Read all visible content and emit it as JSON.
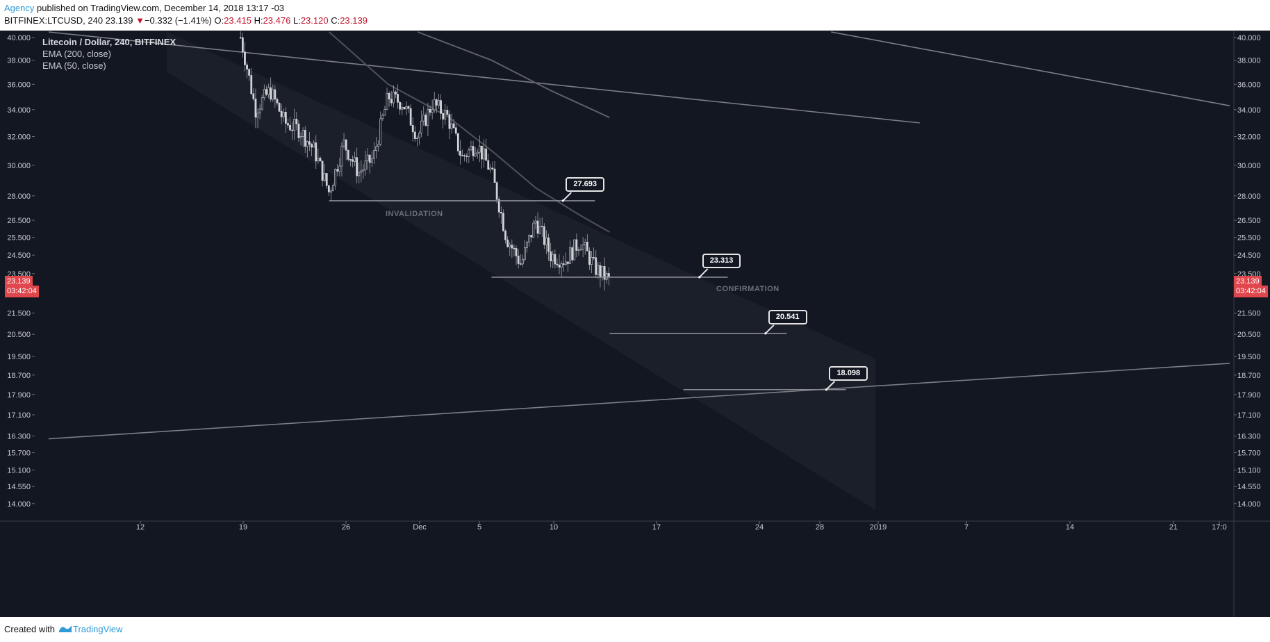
{
  "header": {
    "author": "Agency",
    "published_text": " published on TradingView.com, December 14, 2018 13:17 -03",
    "symbol": "BITFINEX:LTCUSD, 240",
    "last_price": "23.139",
    "change_arrow": "▼",
    "change": "−0.332 (−1.41%)",
    "open_label": "O:",
    "open": "23.415",
    "high_label": "H:",
    "high": "23.476",
    "low_label": "L:",
    "low": "23.120",
    "close_label": "C:",
    "close": "23.139"
  },
  "legend": {
    "title": "Litecoin / Dollar, 240, BITFINEX",
    "indicators": [
      "EMA (200, close)",
      "EMA (50, close)"
    ]
  },
  "price_badges": {
    "price": "23.139",
    "countdown": "03:42:04"
  },
  "annotations": {
    "invalidation": "INVALIDATION",
    "confirmation": "CONFIRMATION"
  },
  "chart_data": {
    "type": "candlestick",
    "title": "Litecoin / Dollar, 240, BITFINEX",
    "timeframe": "240",
    "y_scale": "log",
    "ylim": [
      13.8,
      40.5
    ],
    "y_ticks": [
      "40.000",
      "38.000",
      "36.000",
      "34.000",
      "32.000",
      "30.000",
      "28.000",
      "26.500",
      "25.500",
      "24.500",
      "23.500",
      "21.500",
      "20.500",
      "19.500",
      "18.700",
      "17.900",
      "17.100",
      "16.300",
      "15.700",
      "15.100",
      "14.550",
      "14.000"
    ],
    "x_ticks": [
      "12",
      "19",
      "26",
      "Dec",
      "5",
      "10",
      "17",
      "24",
      "28",
      "2019",
      "7",
      "14",
      "21",
      "17:0"
    ],
    "x_range": [
      "2018-11-06",
      "2019-01-25"
    ],
    "price_path": [
      [
        "2018-11-19",
        40.0
      ],
      [
        "2018-11-19T12",
        37.0
      ],
      [
        "2018-11-20",
        34.0
      ],
      [
        "2018-11-21",
        35.5
      ],
      [
        "2018-11-22",
        33.0
      ],
      [
        "2018-11-23",
        32.5
      ],
      [
        "2018-11-24",
        31.0
      ],
      [
        "2018-11-25",
        28.2
      ],
      [
        "2018-11-26",
        31.5
      ],
      [
        "2018-11-27",
        29.5
      ],
      [
        "2018-11-28",
        30.5
      ],
      [
        "2018-11-29",
        35.0
      ],
      [
        "2018-11-30",
        34.5
      ],
      [
        "2018-12-01",
        32.0
      ],
      [
        "2018-12-02",
        34.5
      ],
      [
        "2018-12-03",
        33.5
      ],
      [
        "2018-12-04",
        30.5
      ],
      [
        "2018-12-05",
        31.5
      ],
      [
        "2018-12-06",
        29.5
      ],
      [
        "2018-12-06T12",
        27.5
      ],
      [
        "2018-12-07",
        25.5
      ],
      [
        "2018-12-08",
        24.0
      ],
      [
        "2018-12-09",
        26.5
      ],
      [
        "2018-12-10",
        24.5
      ],
      [
        "2018-12-11",
        24.2
      ],
      [
        "2018-12-12",
        25.3
      ],
      [
        "2018-12-13",
        23.8
      ],
      [
        "2018-12-14",
        23.139
      ]
    ],
    "ema_50": [
      [
        "2018-11-25",
        40.5
      ],
      [
        "2018-11-29",
        36.0
      ],
      [
        "2018-12-03",
        33.5
      ],
      [
        "2018-12-06",
        31.0
      ],
      [
        "2018-12-09",
        28.5
      ],
      [
        "2018-12-12",
        26.8
      ],
      [
        "2018-12-14",
        25.8
      ]
    ],
    "ema_200": [
      [
        "2018-12-01",
        40.5
      ],
      [
        "2018-12-06",
        38.0
      ],
      [
        "2018-12-10",
        35.5
      ],
      [
        "2018-12-14",
        33.4
      ]
    ],
    "horizontal_levels": [
      {
        "label": "27.693",
        "price": 27.693,
        "from": "2018-11-25",
        "to": "2018-12-13",
        "note": "INVALIDATION"
      },
      {
        "label": "23.313",
        "price": 23.313,
        "from": "2018-12-06",
        "to": "2018-12-22",
        "note": "CONFIRMATION"
      },
      {
        "label": "20.541",
        "price": 20.541,
        "from": "2018-12-14",
        "to": "2018-12-26",
        "note": ""
      },
      {
        "label": "18.098",
        "price": 18.098,
        "from": "2018-12-19",
        "to": "2018-12-30",
        "note": ""
      }
    ],
    "trend_lines": [
      {
        "name": "long-term resistance",
        "points": [
          [
            "2018-11-06",
            40.5
          ],
          [
            "2019-01-04",
            33.0
          ]
        ]
      },
      {
        "name": "upper resistance",
        "points": [
          [
            "2018-12-29",
            40.5
          ],
          [
            "2019-01-25",
            34.3
          ]
        ]
      },
      {
        "name": "long-term support",
        "points": [
          [
            "2018-11-06",
            16.2
          ],
          [
            "2019-01-25",
            19.2
          ]
        ]
      }
    ],
    "channel": {
      "upper": [
        [
          "2018-11-14",
          40.5
        ],
        [
          "2019-01-01",
          19.4
        ]
      ],
      "lower": [
        [
          "2018-11-14",
          37.0
        ],
        [
          "2019-01-01",
          13.8
        ]
      ]
    },
    "colors": {
      "background": "#131722",
      "candles": "#d0d3d8",
      "levels": "#8a8d93",
      "price_badge": "#e0474c",
      "author": "#2e9bd6",
      "change": "#c0122b"
    }
  },
  "footer": {
    "created_with": "Created with",
    "brand": "TradingView"
  }
}
